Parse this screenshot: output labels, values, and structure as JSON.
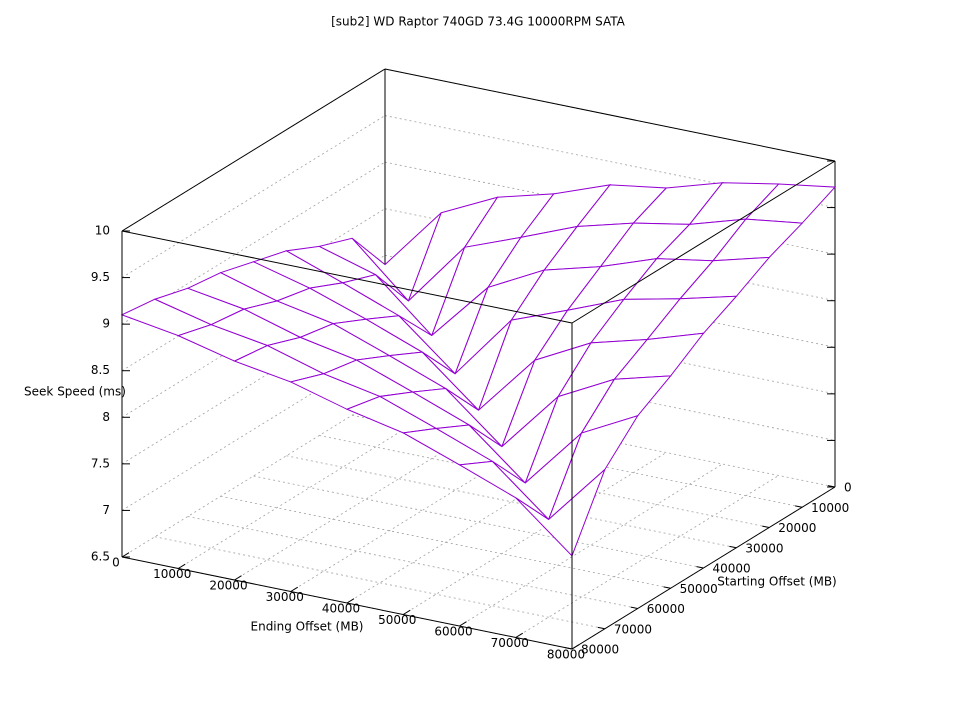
{
  "chart_data": {
    "type": "surface3d",
    "title": "[sub2] WD Raptor 740GD 73.4G 10000RPM SATA",
    "xlabel": "Ending Offset (MB)",
    "ylabel": "Starting Offset (MB)",
    "zlabel": "Seek Speed (ms)",
    "x": [
      0,
      10000,
      20000,
      30000,
      40000,
      50000,
      60000,
      70000,
      80000
    ],
    "y": [
      0,
      10000,
      20000,
      30000,
      40000,
      50000,
      60000,
      70000,
      80000
    ],
    "z": [
      [
        7.9,
        8.58,
        8.87,
        9.03,
        9.25,
        9.34,
        9.52,
        9.63,
        9.72
      ],
      [
        8.4,
        7.85,
        8.55,
        8.78,
        9.02,
        9.18,
        9.29,
        9.47,
        9.55
      ],
      [
        8.53,
        8.35,
        7.82,
        8.46,
        8.77,
        8.93,
        9.14,
        9.24,
        9.4
      ],
      [
        8.7,
        8.48,
        8.25,
        7.75,
        8.45,
        8.68,
        8.92,
        9.05,
        9.2
      ],
      [
        8.8,
        8.64,
        8.43,
        8.2,
        7.7,
        8.36,
        8.67,
        8.83,
        9.02
      ],
      [
        8.9,
        8.72,
        8.6,
        8.38,
        8.15,
        7.65,
        8.31,
        8.62,
        8.78
      ],
      [
        8.95,
        8.85,
        8.67,
        8.55,
        8.33,
        8.1,
        7.6,
        8.26,
        8.57
      ],
      [
        9.05,
        8.9,
        8.8,
        8.62,
        8.5,
        8.28,
        8.05,
        7.55,
        8.21
      ],
      [
        9.1,
        9.0,
        8.85,
        8.75,
        8.58,
        8.45,
        8.23,
        8.0,
        7.5
      ]
    ],
    "xlim": [
      0,
      80000
    ],
    "ylim": [
      0,
      80000
    ],
    "zlim": [
      6.5,
      10
    ],
    "xticks": [
      0,
      10000,
      20000,
      30000,
      40000,
      50000,
      60000,
      70000,
      80000
    ],
    "yticks": [
      0,
      10000,
      20000,
      30000,
      40000,
      50000,
      60000,
      70000,
      80000
    ],
    "zticks": [
      6.5,
      7,
      7.5,
      8,
      8.5,
      9,
      9.5,
      10
    ],
    "color": "#9400d3",
    "underside_color": "#009e73",
    "grid": true
  }
}
